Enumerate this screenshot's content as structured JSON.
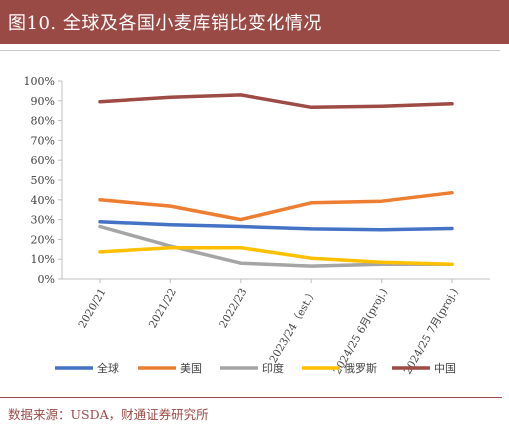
{
  "header": {
    "title": "图10. 全球及各国小麦库销比变化情况"
  },
  "source": {
    "text": "数据来源：USDA，财通证券研究所"
  },
  "colors": {
    "header_bg": "#9a4a45",
    "source_text": "#9a4a45"
  },
  "chart_data": {
    "type": "line",
    "categories": [
      "2020/21",
      "2021/22",
      "2022/23",
      "2023/24（est.）",
      "2024/25 6月(proj.)",
      "2024/25 7月(proj.)"
    ],
    "ylim": [
      0,
      100
    ],
    "yticks": [
      0,
      10,
      20,
      30,
      40,
      50,
      60,
      70,
      80,
      90,
      100
    ],
    "ytick_suffix": "%",
    "grid": false,
    "legend_position": "bottom",
    "series": [
      {
        "name": "全球",
        "color": "#4472c4",
        "values": [
          28.9,
          27.4,
          26.5,
          25.3,
          24.9,
          25.5
        ]
      },
      {
        "name": "美国",
        "color": "#ed7d31",
        "values": [
          40.0,
          36.8,
          30.0,
          38.5,
          39.3,
          43.6
        ]
      },
      {
        "name": "印度",
        "color": "#a5a5a5",
        "values": [
          26.5,
          16.6,
          8.0,
          6.5,
          7.5,
          7.5
        ]
      },
      {
        "name": "俄罗斯",
        "color": "#ffc000",
        "values": [
          13.7,
          15.8,
          15.8,
          10.5,
          8.5,
          7.5
        ]
      },
      {
        "name": "中国",
        "color": "#9e4a45",
        "values": [
          89.5,
          91.8,
          93.0,
          86.7,
          87.2,
          88.5
        ]
      }
    ]
  }
}
